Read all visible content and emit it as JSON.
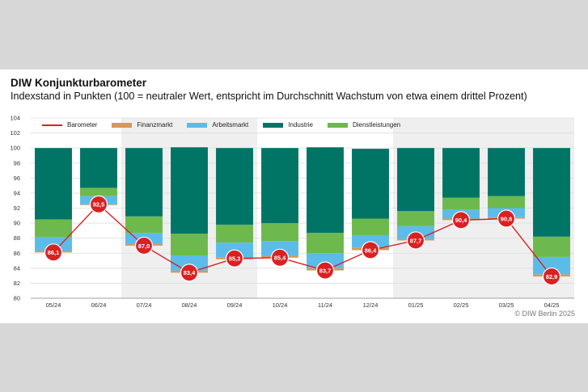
{
  "header": {
    "title": "DIW Konjunkturbarometer",
    "subtitle": "Indexstand in Punkten (100 = neutraler Wert, entspricht im Durchschnitt Wachstum von etwa einem drittel Prozent)"
  },
  "credit": "© DIW Berlin 2025",
  "colors": {
    "barometer": "#d92121",
    "finanzmarkt": "#d39a5c",
    "arbeitsmarkt": "#5bbcea",
    "industrie": "#007566",
    "dienstleistungen": "#6db94e",
    "shade": "#efefef",
    "grid": "#dddddd"
  },
  "chart_data": {
    "type": "bar",
    "title": "DIW Konjunkturbarometer",
    "subtitle": "Indexstand in Punkten (100 = neutraler Wert, entspricht im Durchschnitt Wachstum von etwa einem drittel Prozent)",
    "categories": [
      "05/24",
      "06/24",
      "07/24",
      "08/24",
      "09/24",
      "10/24",
      "11/24",
      "12/24",
      "01/25",
      "02/25",
      "03/25",
      "04/25"
    ],
    "ylim": [
      80,
      104
    ],
    "yticks": [
      80,
      82,
      84,
      86,
      88,
      90,
      92,
      94,
      96,
      98,
      100,
      102,
      104
    ],
    "grid": true,
    "legend_position": "top",
    "shaded_quarters": [
      [
        "07/24",
        "09/24"
      ],
      [
        "01/25",
        "03/25"
      ]
    ],
    "legend": [
      {
        "name": "Barometer",
        "key": "barometer",
        "kind": "line"
      },
      {
        "name": "Finanzmarkt",
        "key": "finanzmarkt",
        "kind": "bar"
      },
      {
        "name": "Arbeitsmarkt",
        "key": "arbeitsmarkt",
        "kind": "bar"
      },
      {
        "name": "Industrie",
        "key": "industrie",
        "kind": "bar"
      },
      {
        "name": "Dienstleistungen",
        "key": "dienstleistungen",
        "kind": "bar"
      }
    ],
    "stacked_bars": [
      {
        "bottom": 86.1,
        "finanzmarkt": 86.3,
        "arbeitsmarkt": 88.1,
        "dienstleistungen": 90.5,
        "top": 100.0
      },
      {
        "bottom": 92.4,
        "finanzmarkt": 92.5,
        "arbeitsmarkt": 93.6,
        "dienstleistungen": 94.7,
        "top": 100.0
      },
      {
        "bottom": 87.0,
        "finanzmarkt": 87.2,
        "arbeitsmarkt": 88.7,
        "dienstleistungen": 90.9,
        "top": 100.0
      },
      {
        "bottom": 83.4,
        "finanzmarkt": 83.7,
        "arbeitsmarkt": 85.7,
        "dienstleistungen": 88.6,
        "top": 100.1
      },
      {
        "bottom": 85.2,
        "finanzmarkt": 85.4,
        "arbeitsmarkt": 87.4,
        "dienstleistungen": 89.8,
        "top": 100.0
      },
      {
        "bottom": 85.4,
        "finanzmarkt": 85.7,
        "arbeitsmarkt": 87.6,
        "dienstleistungen": 90.0,
        "top": 100.0
      },
      {
        "bottom": 83.7,
        "finanzmarkt": 84.0,
        "arbeitsmarkt": 86.0,
        "dienstleistungen": 88.7,
        "top": 100.1
      },
      {
        "bottom": 86.4,
        "finanzmarkt": 86.7,
        "arbeitsmarkt": 88.4,
        "dienstleistungen": 90.6,
        "top": 99.9
      },
      {
        "bottom": 87.7,
        "finanzmarkt": 87.9,
        "arbeitsmarkt": 89.6,
        "dienstleistungen": 91.6,
        "top": 100.0
      },
      {
        "bottom": 90.4,
        "finanzmarkt": 90.6,
        "arbeitsmarkt": 91.8,
        "dienstleistungen": 93.4,
        "top": 100.0
      },
      {
        "bottom": 90.6,
        "finanzmarkt": 90.8,
        "arbeitsmarkt": 92.0,
        "dienstleistungen": 93.6,
        "top": 100.0
      },
      {
        "bottom": 82.9,
        "finanzmarkt": 83.2,
        "arbeitsmarkt": 85.5,
        "dienstleistungen": 88.2,
        "top": 100.0
      }
    ],
    "series": [
      {
        "name": "Barometer",
        "values": [
          86.1,
          92.5,
          87.0,
          83.4,
          85.3,
          85.4,
          83.7,
          86.4,
          87.7,
          90.4,
          90.6,
          82.9
        ],
        "labels": [
          "86,1",
          "92,5",
          "87,0",
          "83,4",
          "85,3",
          "85,4",
          "83,7",
          "86,4",
          "87,7",
          "90,4",
          "90,6",
          "82,9"
        ]
      }
    ]
  }
}
